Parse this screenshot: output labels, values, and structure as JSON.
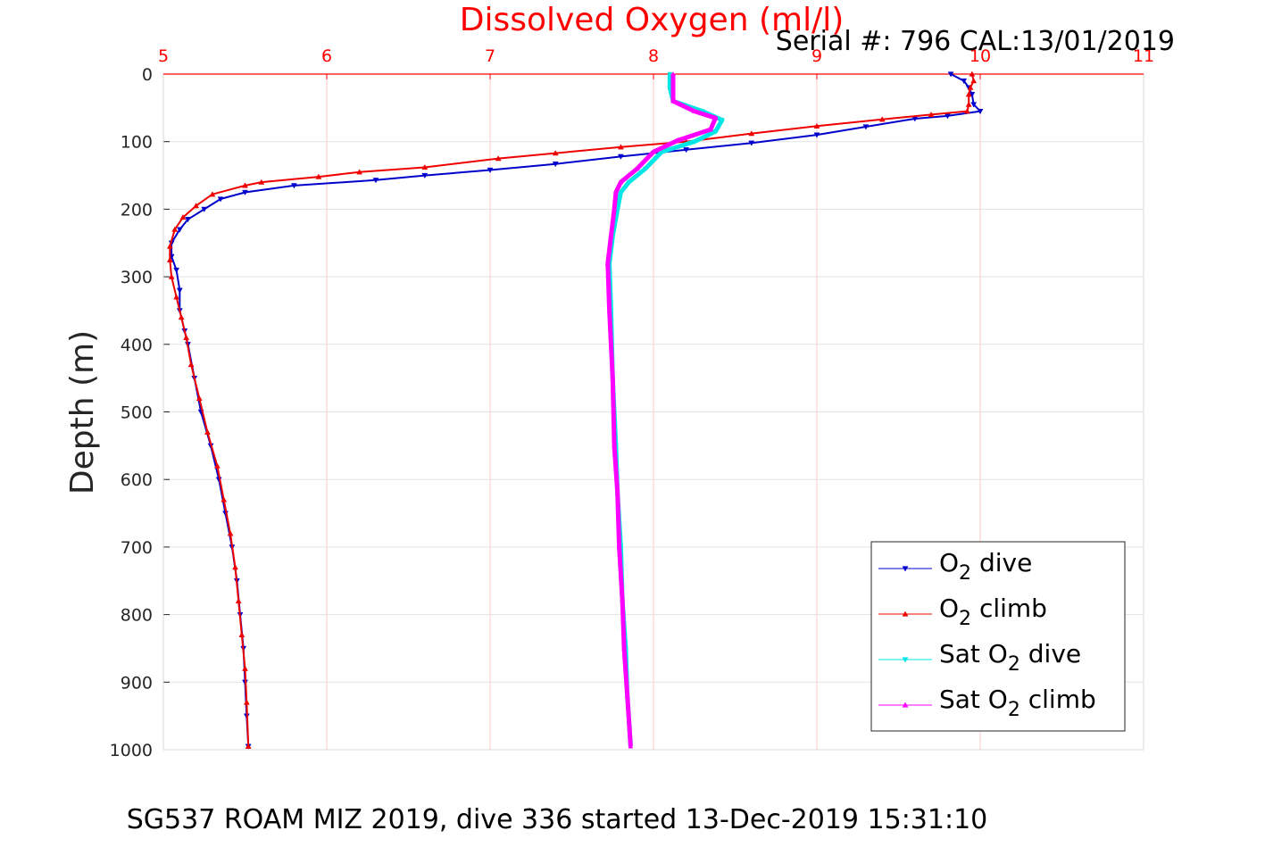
{
  "chart_data": {
    "type": "line",
    "title": "Dissolved Oxygen (ml/l)",
    "subtitle": "Serial #: 796  CAL:13/01/2019",
    "caption": "SG537 ROAM MIZ 2019, dive 336 started 13-Dec-2019 15:31:10",
    "xlabel": "Dissolved Oxygen (ml/l)",
    "ylabel": "Depth (m)",
    "xlim": [
      5,
      11
    ],
    "ylim": [
      0,
      1000
    ],
    "y_reversed": true,
    "x_axis_position": "top",
    "x_ticks": [
      "5",
      "6",
      "7",
      "8",
      "9",
      "10",
      "11"
    ],
    "y_ticks": [
      "0",
      "100",
      "200",
      "300",
      "400",
      "500",
      "600",
      "700",
      "800",
      "900",
      "1000"
    ],
    "grid": true,
    "legend_position": "bottom-right",
    "colors": {
      "title": "#ff0000",
      "x_ticks": "#ff0000",
      "axis": "#ff0000",
      "grid": "#ffc8c8"
    },
    "series": [
      {
        "name": "dive",
        "legend_prefix": "O",
        "legend_sub": "2",
        "legend_suffix": " dive",
        "color": "#0000cc",
        "marker": "triangle-down",
        "points": [
          [
            9.82,
            0
          ],
          [
            9.9,
            10
          ],
          [
            9.93,
            20
          ],
          [
            9.95,
            30
          ],
          [
            9.96,
            45
          ],
          [
            10.0,
            55
          ],
          [
            9.8,
            62
          ],
          [
            9.6,
            66
          ],
          [
            9.3,
            78
          ],
          [
            9.0,
            90
          ],
          [
            8.6,
            102
          ],
          [
            8.2,
            112
          ],
          [
            7.8,
            122
          ],
          [
            7.4,
            133
          ],
          [
            7.0,
            142
          ],
          [
            6.6,
            150
          ],
          [
            6.3,
            157
          ],
          [
            5.8,
            165
          ],
          [
            5.5,
            175
          ],
          [
            5.35,
            185
          ],
          [
            5.25,
            200
          ],
          [
            5.15,
            215
          ],
          [
            5.1,
            230
          ],
          [
            5.05,
            250
          ],
          [
            5.05,
            270
          ],
          [
            5.08,
            290
          ],
          [
            5.1,
            320
          ],
          [
            5.1,
            350
          ],
          [
            5.13,
            380
          ],
          [
            5.15,
            400
          ],
          [
            5.19,
            450
          ],
          [
            5.23,
            500
          ],
          [
            5.29,
            550
          ],
          [
            5.34,
            600
          ],
          [
            5.38,
            650
          ],
          [
            5.42,
            700
          ],
          [
            5.45,
            750
          ],
          [
            5.47,
            800
          ],
          [
            5.49,
            850
          ],
          [
            5.5,
            900
          ],
          [
            5.51,
            950
          ],
          [
            5.52,
            995
          ]
        ]
      },
      {
        "name": "climb",
        "legend_prefix": "O",
        "legend_sub": "2",
        "legend_suffix": " climb",
        "color": "#ee0000",
        "marker": "triangle-up",
        "points": [
          [
            9.95,
            0
          ],
          [
            9.96,
            10
          ],
          [
            9.94,
            20
          ],
          [
            9.93,
            30
          ],
          [
            9.93,
            45
          ],
          [
            9.92,
            55
          ],
          [
            9.7,
            60
          ],
          [
            9.4,
            67
          ],
          [
            9.0,
            77
          ],
          [
            8.6,
            88
          ],
          [
            8.2,
            100
          ],
          [
            7.8,
            108
          ],
          [
            7.4,
            117
          ],
          [
            7.05,
            125
          ],
          [
            6.6,
            138
          ],
          [
            6.2,
            145
          ],
          [
            5.95,
            152
          ],
          [
            5.6,
            160
          ],
          [
            5.5,
            165
          ],
          [
            5.3,
            178
          ],
          [
            5.2,
            195
          ],
          [
            5.12,
            212
          ],
          [
            5.07,
            230
          ],
          [
            5.04,
            255
          ],
          [
            5.04,
            275
          ],
          [
            5.05,
            300
          ],
          [
            5.08,
            330
          ],
          [
            5.11,
            360
          ],
          [
            5.14,
            390
          ],
          [
            5.17,
            430
          ],
          [
            5.22,
            480
          ],
          [
            5.27,
            530
          ],
          [
            5.33,
            580
          ],
          [
            5.37,
            630
          ],
          [
            5.41,
            680
          ],
          [
            5.44,
            730
          ],
          [
            5.46,
            780
          ],
          [
            5.48,
            830
          ],
          [
            5.5,
            880
          ],
          [
            5.51,
            930
          ],
          [
            5.52,
            995
          ]
        ]
      },
      {
        "name": "Sat dive",
        "legend_prefix": "Sat O",
        "legend_sub": "2",
        "legend_suffix": " dive",
        "color": "#00e5e5",
        "marker": "triangle-down",
        "points": [
          [
            8.1,
            0
          ],
          [
            8.1,
            20
          ],
          [
            8.12,
            40
          ],
          [
            8.3,
            55
          ],
          [
            8.42,
            68
          ],
          [
            8.38,
            85
          ],
          [
            8.25,
            100
          ],
          [
            8.05,
            115
          ],
          [
            7.95,
            140
          ],
          [
            7.85,
            160
          ],
          [
            7.8,
            175
          ],
          [
            7.78,
            200
          ],
          [
            7.75,
            240
          ],
          [
            7.73,
            280
          ],
          [
            7.74,
            350
          ],
          [
            7.75,
            450
          ],
          [
            7.77,
            550
          ],
          [
            7.78,
            620
          ],
          [
            7.8,
            700
          ],
          [
            7.81,
            780
          ],
          [
            7.83,
            850
          ],
          [
            7.84,
            920
          ],
          [
            7.86,
            995
          ]
        ]
      },
      {
        "name": "Sat climb",
        "legend_prefix": "Sat O",
        "legend_sub": "2",
        "legend_suffix": " climb",
        "color": "#ff00ff",
        "marker": "triangle-up",
        "points": [
          [
            8.12,
            0
          ],
          [
            8.12,
            20
          ],
          [
            8.12,
            40
          ],
          [
            8.25,
            55
          ],
          [
            8.38,
            65
          ],
          [
            8.35,
            82
          ],
          [
            8.15,
            98
          ],
          [
            8.0,
            115
          ],
          [
            7.9,
            140
          ],
          [
            7.8,
            160
          ],
          [
            7.77,
            175
          ],
          [
            7.76,
            200
          ],
          [
            7.74,
            240
          ],
          [
            7.72,
            280
          ],
          [
            7.73,
            350
          ],
          [
            7.75,
            450
          ],
          [
            7.76,
            550
          ],
          [
            7.78,
            620
          ],
          [
            7.79,
            700
          ],
          [
            7.81,
            780
          ],
          [
            7.82,
            850
          ],
          [
            7.84,
            920
          ],
          [
            7.86,
            995
          ]
        ]
      }
    ]
  }
}
